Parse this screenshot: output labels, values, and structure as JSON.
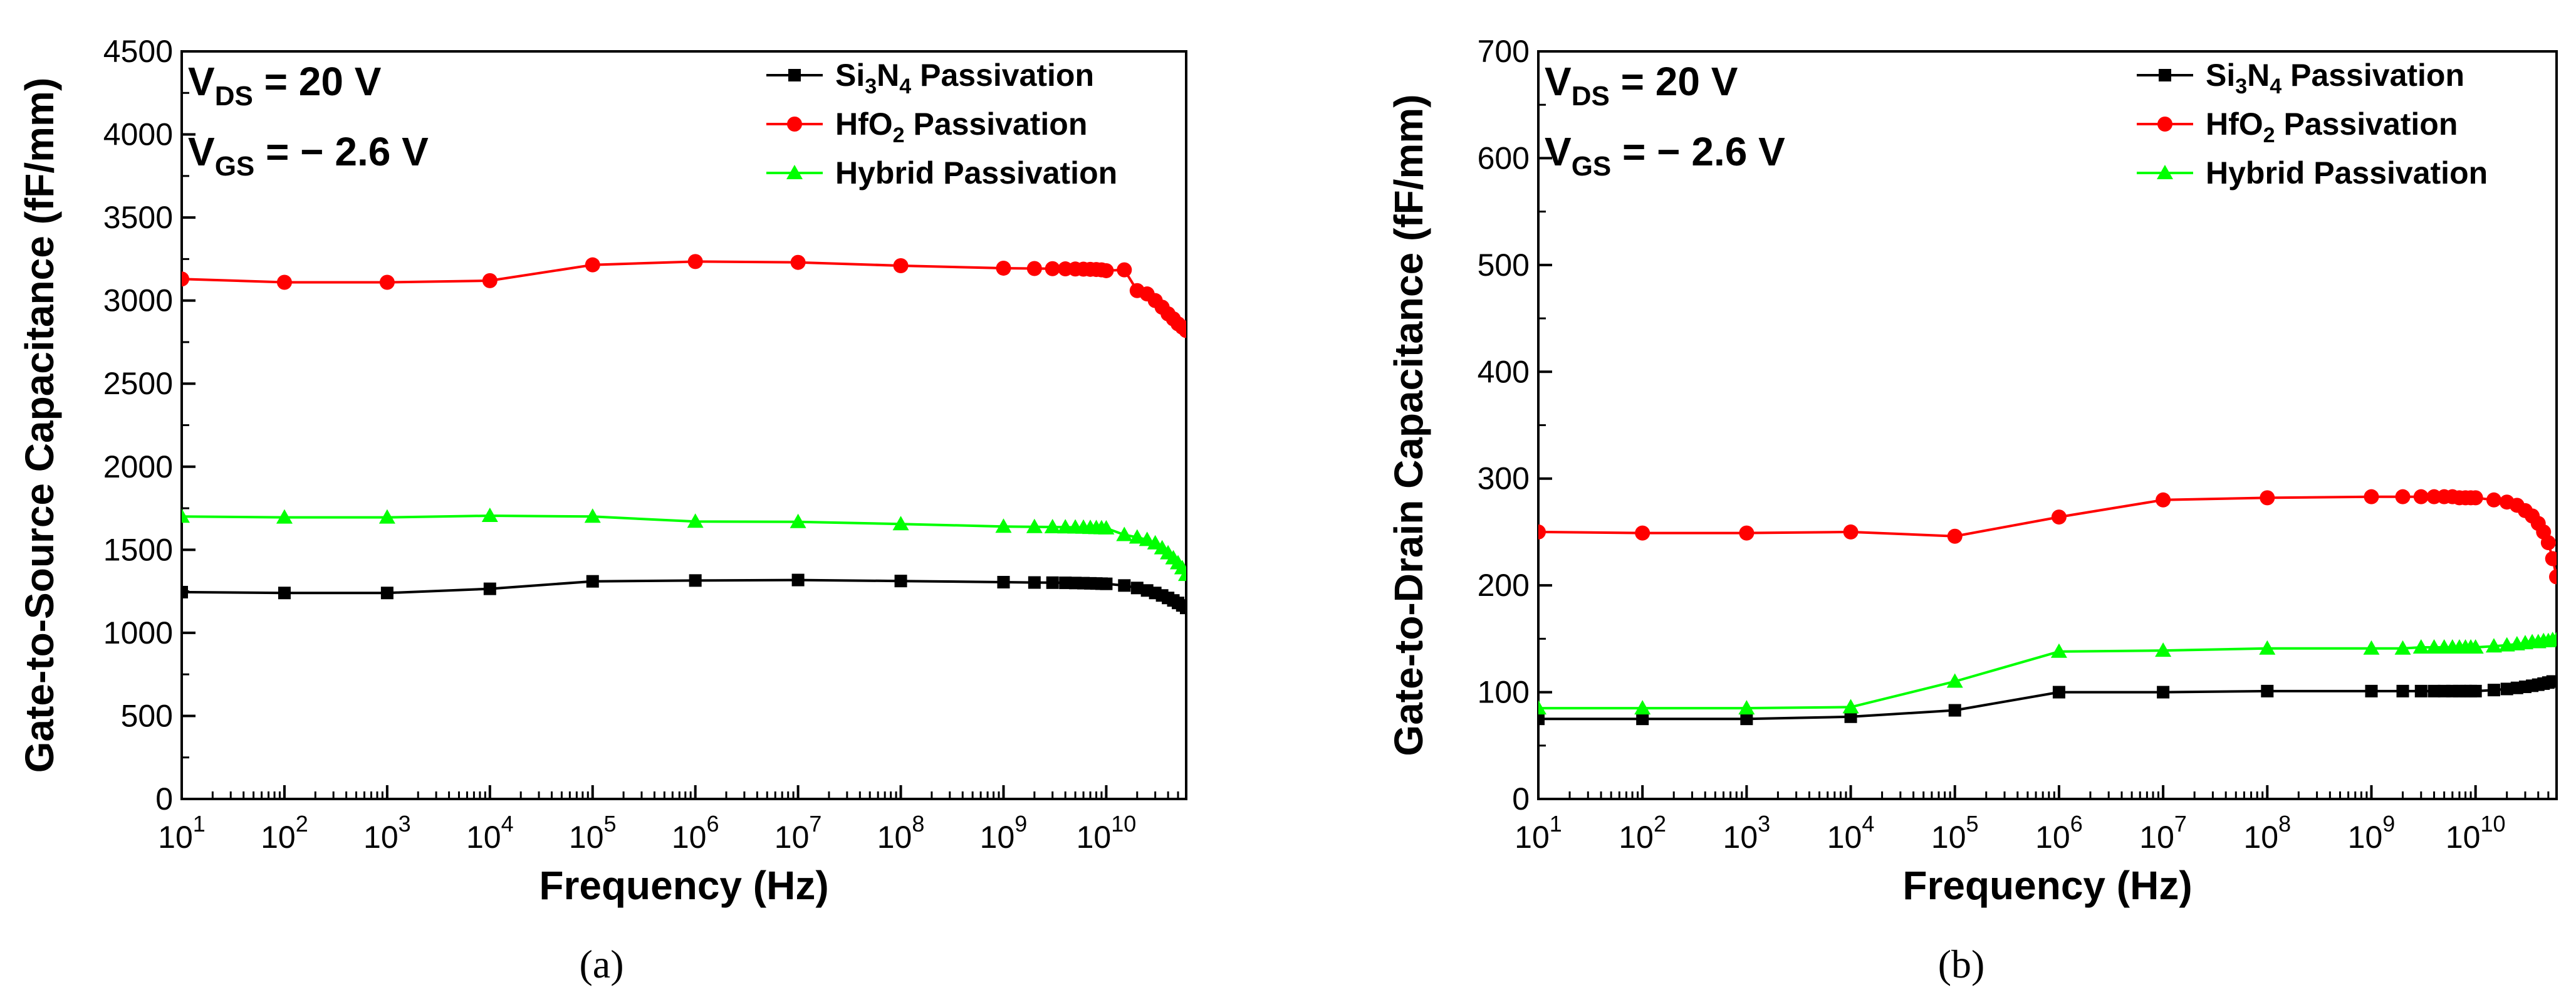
{
  "chart_data": [
    {
      "type": "line",
      "caption": "(a)",
      "xlabel": "Frequency (Hz)",
      "ylabel": "Gate-to-Source Capacitance (fF/mm)",
      "xscale": "log",
      "xlim": [
        10,
        60000000000
      ],
      "ylim": [
        0,
        4500
      ],
      "grid": false,
      "legend_position": "top-right",
      "x_ticks": [
        {
          "base": "10",
          "exp": "1"
        },
        {
          "base": "10",
          "exp": "2"
        },
        {
          "base": "10",
          "exp": "3"
        },
        {
          "base": "10",
          "exp": "4"
        },
        {
          "base": "10",
          "exp": "5"
        },
        {
          "base": "10",
          "exp": "6"
        },
        {
          "base": "10",
          "exp": "7"
        },
        {
          "base": "10",
          "exp": "8"
        },
        {
          "base": "10",
          "exp": "9"
        },
        {
          "base": "10",
          "exp": "10"
        }
      ],
      "y_ticks": [
        "0",
        "500",
        "1000",
        "1500",
        "2000",
        "2500",
        "3000",
        "3500",
        "4000",
        "4500"
      ],
      "annotations": [
        {
          "main": "V",
          "sub": "DS",
          "rest": " = 20 V"
        },
        {
          "main": "V",
          "sub": "GS",
          "rest": " = − 2.6 V"
        }
      ],
      "series": [
        {
          "name": "Si3N4 Passivation",
          "legend": {
            "a": "Si",
            "s1": "3",
            "b": "N",
            "s2": "4",
            "c": " Passivation"
          },
          "color": "#000000",
          "marker": "square",
          "x": [
            10,
            100,
            1000,
            10000,
            100000,
            1000000,
            10000000,
            100000000,
            1000000000,
            2000000000,
            3000000000,
            4000000000,
            5000000000,
            6000000000,
            7000000000,
            8000000000,
            9000000000,
            10000000000,
            15000000000,
            20000000000,
            25000000000,
            30000000000,
            35000000000,
            40000000000,
            45000000000,
            50000000000,
            55000000000,
            60000000000
          ],
          "y": [
            1245,
            1240,
            1240,
            1265,
            1310,
            1315,
            1318,
            1312,
            1305,
            1303,
            1302,
            1301,
            1300,
            1299,
            1298,
            1297,
            1296,
            1295,
            1285,
            1270,
            1255,
            1240,
            1225,
            1210,
            1195,
            1180,
            1165,
            1150
          ]
        },
        {
          "name": "HfO2 Passivation",
          "legend": {
            "a": "HfO",
            "s1": "2",
            "b": "",
            "s2": "",
            "c": " Passivation"
          },
          "color": "#ff0000",
          "marker": "circle",
          "x": [
            10,
            100,
            1000,
            10000,
            100000,
            1000000,
            10000000,
            100000000,
            1000000000,
            2000000000,
            3000000000,
            4000000000,
            5000000000,
            6000000000,
            7000000000,
            8000000000,
            9000000000,
            10000000000,
            15000000000,
            20000000000,
            25000000000,
            30000000000,
            35000000000,
            40000000000,
            45000000000,
            50000000000,
            55000000000,
            60000000000
          ],
          "y": [
            3130,
            3110,
            3110,
            3120,
            3215,
            3235,
            3230,
            3210,
            3195,
            3193,
            3192,
            3191,
            3190,
            3189,
            3188,
            3187,
            3185,
            3180,
            3185,
            3060,
            3040,
            3000,
            2960,
            2920,
            2890,
            2860,
            2840,
            2820
          ]
        },
        {
          "name": "Hybrid Passivation",
          "legend": {
            "a": "Hybrid Passivation",
            "s1": "",
            "b": "",
            "s2": "",
            "c": ""
          },
          "color": "#00ff00",
          "marker": "triangle",
          "x": [
            10,
            100,
            1000,
            10000,
            100000,
            1000000,
            10000000,
            100000000,
            1000000000,
            2000000000,
            3000000000,
            4000000000,
            5000000000,
            6000000000,
            7000000000,
            8000000000,
            9000000000,
            10000000000,
            15000000000,
            20000000000,
            25000000000,
            30000000000,
            35000000000,
            40000000000,
            45000000000,
            50000000000,
            55000000000,
            60000000000
          ],
          "y": [
            1700,
            1695,
            1695,
            1705,
            1700,
            1670,
            1668,
            1655,
            1640,
            1638,
            1637,
            1636,
            1635,
            1634,
            1633,
            1632,
            1631,
            1630,
            1590,
            1575,
            1560,
            1540,
            1510,
            1480,
            1450,
            1420,
            1390,
            1350
          ]
        }
      ]
    },
    {
      "type": "line",
      "caption": "(b)",
      "xlabel": "Frequency (Hz)",
      "ylabel": "Gate-to-Drain Capacitance (fF/mm)",
      "xscale": "log",
      "xlim": [
        10,
        60000000000
      ],
      "ylim": [
        0,
        700
      ],
      "grid": false,
      "legend_position": "top-right",
      "x_ticks": [
        {
          "base": "10",
          "exp": "1"
        },
        {
          "base": "10",
          "exp": "2"
        },
        {
          "base": "10",
          "exp": "3"
        },
        {
          "base": "10",
          "exp": "4"
        },
        {
          "base": "10",
          "exp": "5"
        },
        {
          "base": "10",
          "exp": "6"
        },
        {
          "base": "10",
          "exp": "7"
        },
        {
          "base": "10",
          "exp": "8"
        },
        {
          "base": "10",
          "exp": "9"
        },
        {
          "base": "10",
          "exp": "10"
        }
      ],
      "y_ticks": [
        "0",
        "100",
        "200",
        "300",
        "400",
        "500",
        "600",
        "700"
      ],
      "annotations": [
        {
          "main": "V",
          "sub": "DS",
          "rest": " = 20 V"
        },
        {
          "main": "V",
          "sub": "GS",
          "rest": " = − 2.6 V"
        }
      ],
      "series": [
        {
          "name": "Si3N4 Passivation",
          "legend": {
            "a": "Si",
            "s1": "3",
            "b": "N",
            "s2": "4",
            "c": " Passivation"
          },
          "color": "#000000",
          "marker": "square",
          "x": [
            10,
            100,
            1000,
            10000,
            100000,
            1000000,
            10000000,
            100000000,
            1000000000,
            2000000000,
            3000000000,
            4000000000,
            5000000000,
            6000000000,
            7000000000,
            8000000000,
            9000000000,
            10000000000,
            15000000000,
            20000000000,
            25000000000,
            30000000000,
            35000000000,
            40000000000,
            45000000000,
            50000000000,
            55000000000,
            60000000000
          ],
          "y": [
            75,
            75,
            75,
            77,
            83,
            100,
            100,
            101,
            101,
            101,
            101,
            101,
            101,
            101,
            101,
            101,
            101,
            101,
            102,
            103,
            104,
            105,
            106,
            107,
            108,
            109,
            110,
            110
          ]
        },
        {
          "name": "HfO2 Passivation",
          "legend": {
            "a": "HfO",
            "s1": "2",
            "b": "",
            "s2": "",
            "c": " Passivation"
          },
          "color": "#ff0000",
          "marker": "circle",
          "x": [
            10,
            100,
            1000,
            10000,
            100000,
            1000000,
            10000000,
            100000000,
            1000000000,
            2000000000,
            3000000000,
            4000000000,
            5000000000,
            6000000000,
            7000000000,
            8000000000,
            9000000000,
            10000000000,
            15000000000,
            20000000000,
            25000000000,
            30000000000,
            35000000000,
            40000000000,
            45000000000,
            50000000000,
            55000000000,
            60000000000
          ],
          "y": [
            250,
            249,
            249,
            250,
            246,
            264,
            280,
            282,
            283,
            283,
            283,
            283,
            283,
            283,
            282,
            282,
            282,
            282,
            280,
            278,
            275,
            270,
            265,
            258,
            250,
            240,
            225,
            208
          ]
        },
        {
          "name": "Hybrid Passivation",
          "legend": {
            "a": "Hybrid Passivation",
            "s1": "",
            "b": "",
            "s2": "",
            "c": ""
          },
          "color": "#00ff00",
          "marker": "triangle",
          "x": [
            10,
            100,
            1000,
            10000,
            100000,
            1000000,
            10000000,
            100000000,
            1000000000,
            2000000000,
            3000000000,
            4000000000,
            5000000000,
            6000000000,
            7000000000,
            8000000000,
            9000000000,
            10000000000,
            15000000000,
            20000000000,
            25000000000,
            30000000000,
            35000000000,
            40000000000,
            45000000000,
            50000000000,
            55000000000,
            60000000000
          ],
          "y": [
            85,
            85,
            85,
            86,
            110,
            138,
            139,
            141,
            141,
            141,
            142,
            142,
            142,
            142,
            142,
            142,
            142,
            142,
            143,
            144,
            145,
            146,
            147,
            147,
            148,
            148,
            149,
            149
          ]
        }
      ]
    }
  ]
}
